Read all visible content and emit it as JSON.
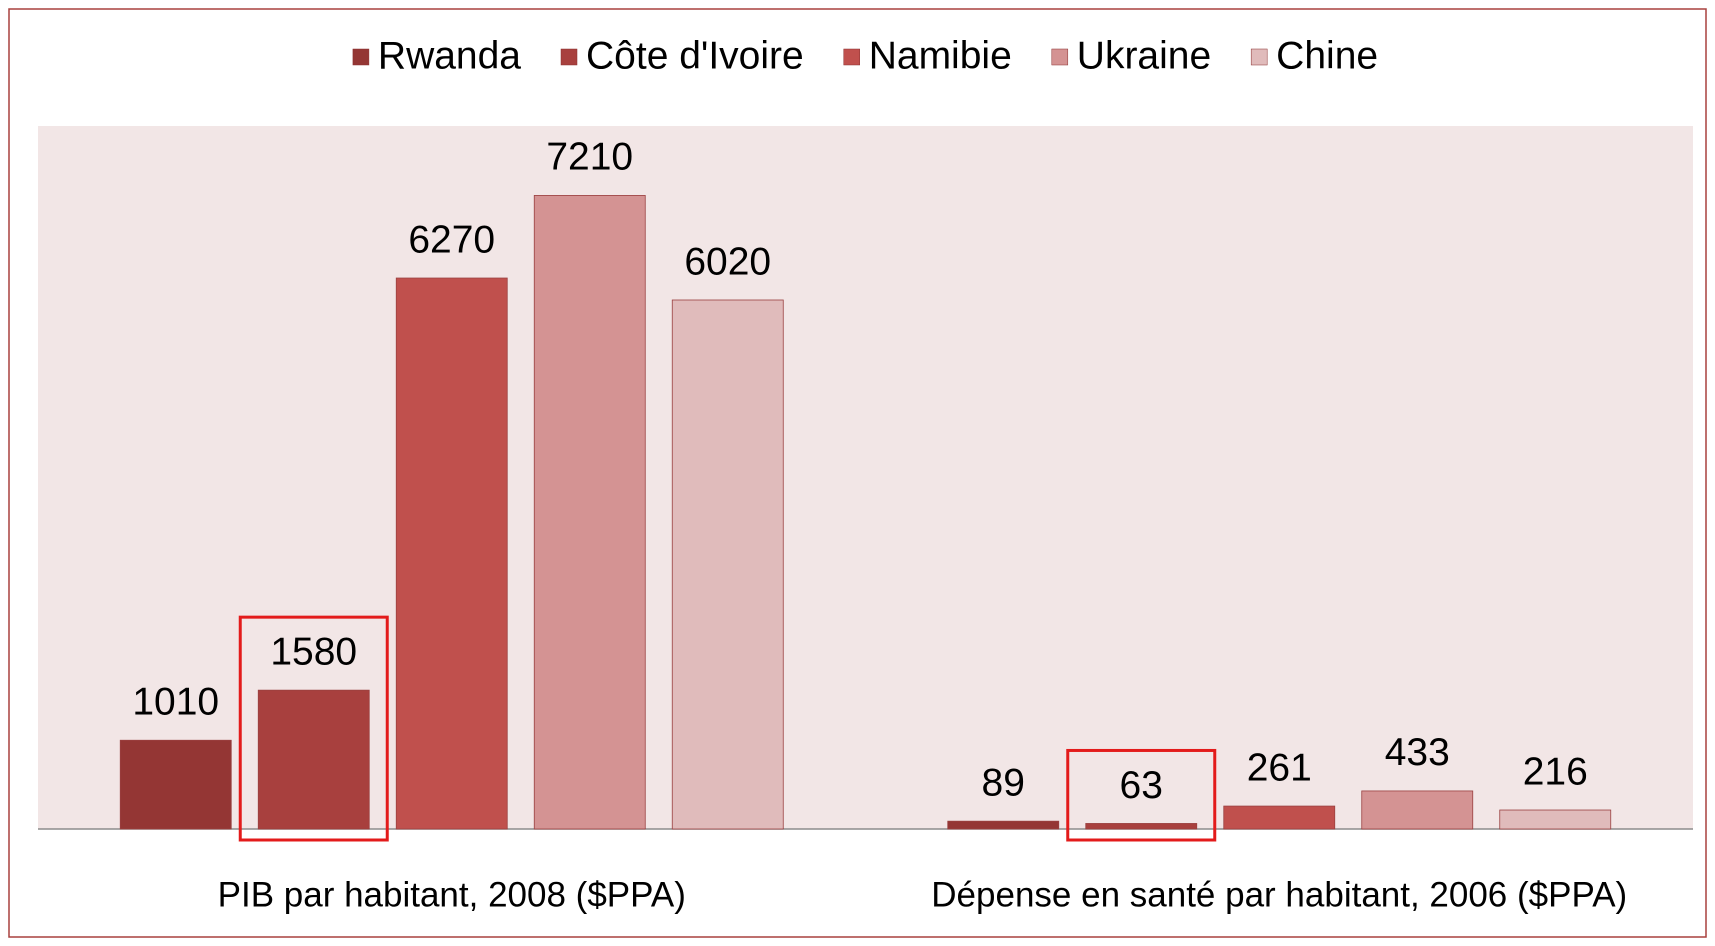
{
  "chart_data": {
    "type": "bar",
    "categories": [
      "PIB par habitant, 2008 ($PPA)",
      "Dépense en santé par habitant, 2006 ($PPA)"
    ],
    "series": [
      {
        "name": "Rwanda",
        "color": "#943634",
        "values": [
          1010,
          89
        ]
      },
      {
        "name": "Côte d'Ivoire",
        "color": "#A8403E",
        "values": [
          1580,
          63
        ]
      },
      {
        "name": "Namibie",
        "color": "#C0504D",
        "values": [
          6270,
          261
        ]
      },
      {
        "name": "Ukraine",
        "color": "#D49393",
        "values": [
          7210,
          433
        ]
      },
      {
        "name": "Chine",
        "color": "#E0BBBB",
        "values": [
          6020,
          216
        ]
      }
    ],
    "ylim": [
      0,
      8000
    ],
    "legend": "top",
    "grid": false
  }
}
